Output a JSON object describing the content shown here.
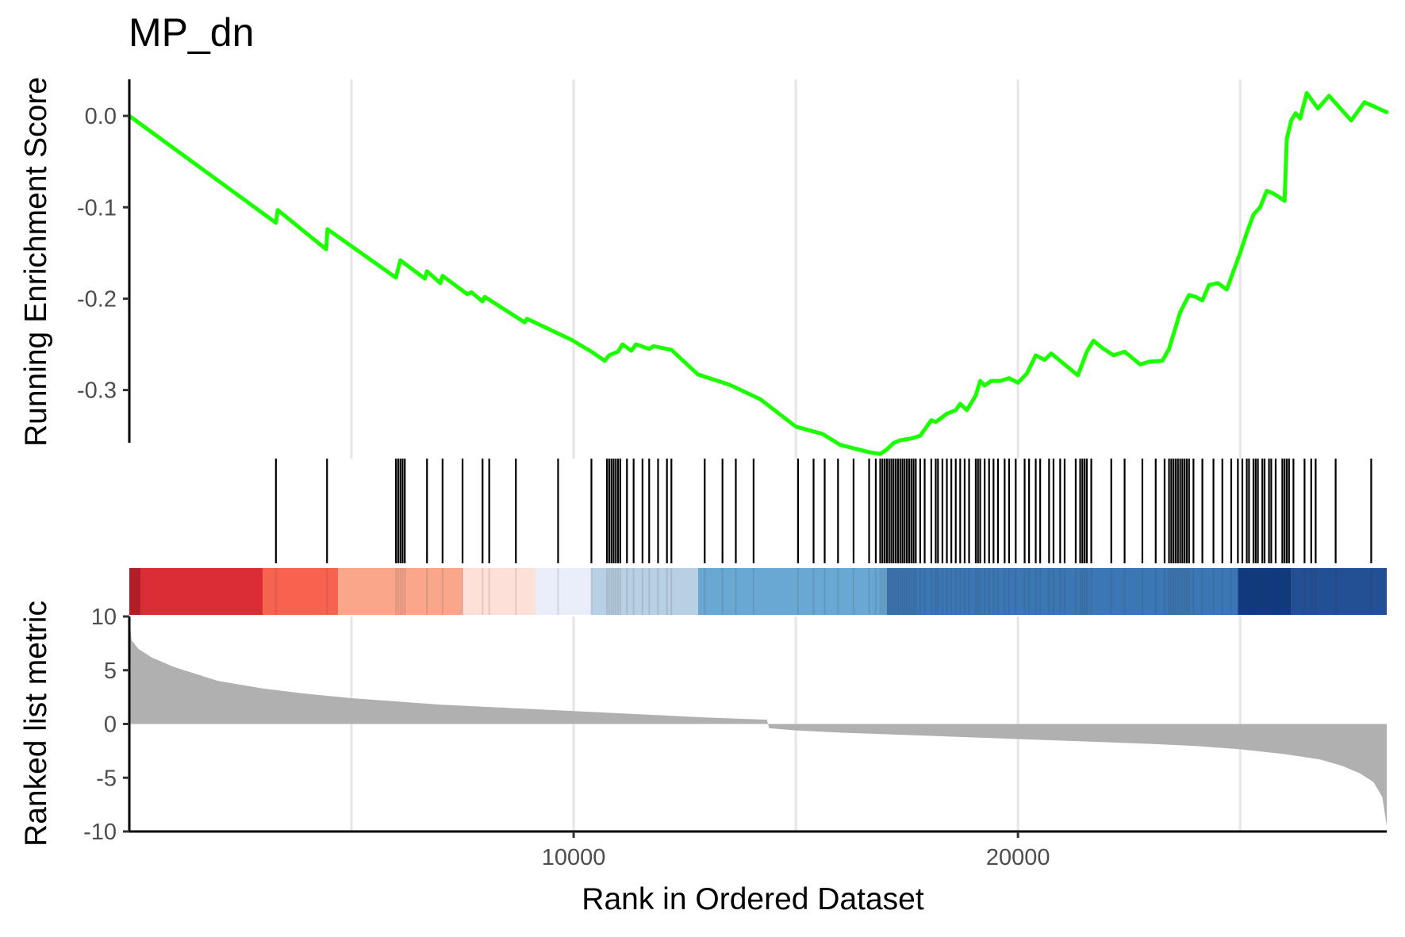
{
  "chart_data": {
    "type": "line",
    "title": "MP_dn",
    "xlabel": "Rank in Ordered Dataset",
    "xlim": [
      0,
      28300
    ],
    "x_ticks": [
      10000,
      20000
    ],
    "x_tick_labels": [
      "10000",
      "20000"
    ],
    "vertical_gridlines": [
      5000,
      10000,
      15000,
      20000,
      25000
    ],
    "running_es": {
      "ylabel": "Running Enrichment Score",
      "ylim": [
        -0.375,
        0.04
      ],
      "y_ticks": [
        0.0,
        -0.1,
        -0.2,
        -0.3
      ],
      "y_tick_labels": [
        "0.0",
        "-0.1",
        "-0.2",
        "-0.3"
      ],
      "color": "#1cff00",
      "x": [
        0,
        3300,
        3340,
        4430,
        4460,
        6000,
        6100,
        6650,
        6700,
        7000,
        7050,
        7600,
        7700,
        7950,
        8000,
        8900,
        8950,
        9950,
        10400,
        10700,
        10800,
        11000,
        11100,
        11300,
        11400,
        11700,
        11800,
        12200,
        12800,
        13500,
        14200,
        15000,
        15600,
        16000,
        16650,
        16900,
        17050,
        17200,
        17350,
        17600,
        17800,
        18050,
        18150,
        18400,
        18600,
        18700,
        18850,
        19050,
        19150,
        19250,
        19400,
        19600,
        19800,
        20000,
        20200,
        20400,
        20600,
        20750,
        21350,
        21550,
        21700,
        21900,
        22150,
        22400,
        22750,
        22950,
        23250,
        23400,
        23650,
        23850,
        24000,
        24150,
        24300,
        24500,
        24700,
        24850,
        25000,
        25150,
        25300,
        25450,
        25600,
        25750,
        25850,
        26000,
        26050,
        26150,
        26250,
        26350,
        26500,
        26750,
        27000,
        27500,
        27800,
        28300
      ],
      "y": [
        0.0,
        -0.117,
        -0.103,
        -0.146,
        -0.124,
        -0.177,
        -0.158,
        -0.178,
        -0.17,
        -0.183,
        -0.175,
        -0.195,
        -0.193,
        -0.203,
        -0.198,
        -0.226,
        -0.222,
        -0.245,
        -0.258,
        -0.268,
        -0.262,
        -0.258,
        -0.25,
        -0.257,
        -0.25,
        -0.255,
        -0.252,
        -0.256,
        -0.283,
        -0.294,
        -0.31,
        -0.34,
        -0.348,
        -0.36,
        -0.368,
        -0.37,
        -0.365,
        -0.358,
        -0.355,
        -0.353,
        -0.35,
        -0.333,
        -0.335,
        -0.326,
        -0.322,
        -0.315,
        -0.322,
        -0.306,
        -0.29,
        -0.295,
        -0.29,
        -0.29,
        -0.287,
        -0.292,
        -0.282,
        -0.262,
        -0.267,
        -0.26,
        -0.284,
        -0.258,
        -0.246,
        -0.254,
        -0.262,
        -0.258,
        -0.272,
        -0.269,
        -0.268,
        -0.255,
        -0.215,
        -0.196,
        -0.198,
        -0.202,
        -0.185,
        -0.183,
        -0.19,
        -0.17,
        -0.15,
        -0.128,
        -0.108,
        -0.1,
        -0.082,
        -0.085,
        -0.088,
        -0.093,
        -0.025,
        -0.005,
        0.003,
        -0.003,
        0.025,
        0.008,
        0.022,
        -0.005,
        0.015,
        0.004
      ]
    },
    "gene_hits": [
      3300,
      4450,
      6000,
      6050,
      6100,
      6150,
      6200,
      6700,
      7050,
      7500,
      7950,
      8100,
      8700,
      9650,
      10400,
      10750,
      10800,
      10850,
      10900,
      10950,
      11000,
      11050,
      11200,
      11350,
      11550,
      11700,
      11900,
      12100,
      12200,
      12950,
      13350,
      13650,
      14050,
      15050,
      15400,
      15650,
      15950,
      16300,
      16650,
      16800,
      16900,
      16950,
      17000,
      17050,
      17100,
      17150,
      17200,
      17250,
      17300,
      17350,
      17400,
      17450,
      17500,
      17550,
      17600,
      17650,
      17700,
      17800,
      17900,
      18050,
      18150,
      18200,
      18300,
      18400,
      18500,
      18600,
      18700,
      18800,
      18900,
      19050,
      19100,
      19150,
      19250,
      19350,
      19450,
      19550,
      19700,
      19800,
      19950,
      20150,
      20250,
      20400,
      20500,
      20700,
      20800,
      20950,
      21050,
      21300,
      21400,
      21450,
      21500,
      21550,
      21650,
      22100,
      22400,
      22800,
      23100,
      23300,
      23400,
      23450,
      23500,
      23550,
      23600,
      23650,
      23700,
      23750,
      23800,
      23850,
      23950,
      24150,
      24400,
      24600,
      24800,
      24950,
      25050,
      25150,
      25200,
      25300,
      25350,
      25400,
      25500,
      25550,
      25650,
      25700,
      25800,
      25950,
      26000,
      26050,
      26100,
      26200,
      26450,
      26600,
      26700,
      27150,
      27950
    ],
    "color_bar": [
      {
        "from": 0,
        "to": 250,
        "color": "#b11e27"
      },
      {
        "from": 250,
        "to": 3000,
        "color": "#da2d36"
      },
      {
        "from": 3000,
        "to": 4700,
        "color": "#f86350"
      },
      {
        "from": 4700,
        "to": 7500,
        "color": "#f9a68b"
      },
      {
        "from": 7500,
        "to": 9150,
        "color": "#fde0d7"
      },
      {
        "from": 9150,
        "to": 10400,
        "color": "#eaeefb"
      },
      {
        "from": 10400,
        "to": 12800,
        "color": "#b8d0e4"
      },
      {
        "from": 12800,
        "to": 17050,
        "color": "#69a8d3"
      },
      {
        "from": 17050,
        "to": 24950,
        "color": "#3b77b5"
      },
      {
        "from": 24950,
        "to": 26150,
        "color": "#0e3a82"
      },
      {
        "from": 26150,
        "to": 28300,
        "color": "#234f94"
      }
    ],
    "ranked_metric": {
      "ylabel": "Ranked list metric",
      "ylim": [
        -10,
        10
      ],
      "y_ticks": [
        10,
        5,
        0,
        -5,
        -10
      ],
      "y_tick_labels": [
        "10",
        "5",
        "0",
        "-5",
        "-10"
      ],
      "color": "#b0b0b0",
      "x": [
        0,
        50,
        200,
        500,
        1000,
        2000,
        3000,
        4000,
        5000,
        6000,
        7000,
        8000,
        9000,
        10000,
        11000,
        12000,
        13000,
        14350,
        14400,
        15000,
        16000,
        17000,
        18000,
        19000,
        20000,
        21000,
        22000,
        23000,
        24000,
        25000,
        26000,
        26800,
        27300,
        27700,
        28000,
        28200,
        28300
      ],
      "y": [
        10.0,
        7.8,
        7.0,
        6.2,
        5.3,
        4.0,
        3.3,
        2.8,
        2.4,
        2.1,
        1.8,
        1.6,
        1.4,
        1.2,
        1.0,
        0.8,
        0.6,
        0.4,
        -0.4,
        -0.6,
        -0.8,
        -0.95,
        -1.1,
        -1.25,
        -1.4,
        -1.55,
        -1.7,
        -1.85,
        -2.05,
        -2.35,
        -2.8,
        -3.3,
        -3.9,
        -4.6,
        -5.4,
        -6.8,
        -9.5
      ]
    }
  }
}
